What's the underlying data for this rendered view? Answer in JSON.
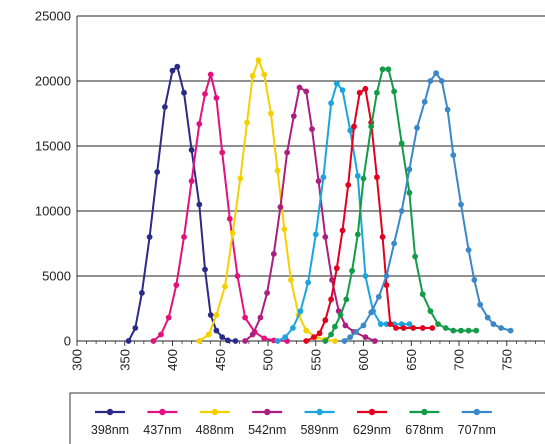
{
  "chart_data": {
    "type": "line",
    "title": "",
    "xlabel": "",
    "ylabel": "",
    "xlim": [
      300,
      790
    ],
    "ylim": [
      0,
      25000
    ],
    "x_ticks": [
      300,
      350,
      400,
      450,
      500,
      550,
      600,
      650,
      700,
      750
    ],
    "x_tick_labels": [
      "300",
      "350",
      "400",
      "450",
      "500",
      "550",
      "600",
      "650",
      "700",
      "750"
    ],
    "y_ticks": [
      0,
      5000,
      10000,
      15000,
      20000,
      25000
    ],
    "y_tick_labels": [
      "0",
      "5000",
      "10000",
      "15000",
      "20000",
      "25000"
    ],
    "grid": "horizontal",
    "legend": "bottom",
    "series": [
      {
        "name": "398nm",
        "color": "#2b2a86",
        "points": [
          [
            354,
            0
          ],
          [
            361,
            1000
          ],
          [
            368,
            3700
          ],
          [
            376,
            8000
          ],
          [
            384,
            13000
          ],
          [
            392,
            18000
          ],
          [
            400,
            20800
          ],
          [
            405,
            21100
          ],
          [
            412,
            19100
          ],
          [
            420,
            14700
          ],
          [
            428,
            10500
          ],
          [
            434,
            5500
          ],
          [
            440,
            2000
          ],
          [
            446,
            800
          ],
          [
            452,
            300
          ],
          [
            458,
            50
          ],
          [
            466,
            0
          ]
        ]
      },
      {
        "name": "437nm",
        "color": "#e3117e",
        "points": [
          [
            380,
            0
          ],
          [
            388,
            500
          ],
          [
            396,
            1800
          ],
          [
            404,
            4300
          ],
          [
            412,
            8000
          ],
          [
            420,
            12300
          ],
          [
            428,
            16700
          ],
          [
            434,
            19000
          ],
          [
            440,
            20500
          ],
          [
            446,
            18700
          ],
          [
            452,
            14500
          ],
          [
            460,
            9400
          ],
          [
            468,
            5000
          ],
          [
            476,
            1800
          ],
          [
            486,
            700
          ],
          [
            496,
            200
          ],
          [
            506,
            50
          ],
          [
            520,
            0
          ]
        ]
      },
      {
        "name": "488nm",
        "color": "#f5d000",
        "points": [
          [
            428,
            0
          ],
          [
            438,
            500
          ],
          [
            446,
            2000
          ],
          [
            455,
            4200
          ],
          [
            463,
            8300
          ],
          [
            471,
            12500
          ],
          [
            478,
            16800
          ],
          [
            484,
            20400
          ],
          [
            490,
            21600
          ],
          [
            496,
            20500
          ],
          [
            503,
            17500
          ],
          [
            510,
            13100
          ],
          [
            517,
            8600
          ],
          [
            524,
            4700
          ],
          [
            532,
            2000
          ],
          [
            540,
            800
          ],
          [
            550,
            300
          ],
          [
            560,
            100
          ],
          [
            570,
            0
          ]
        ]
      },
      {
        "name": "542nm",
        "color": "#ad1f7f",
        "points": [
          [
            476,
            0
          ],
          [
            484,
            500
          ],
          [
            492,
            1800
          ],
          [
            499,
            3700
          ],
          [
            506,
            6700
          ],
          [
            513,
            10300
          ],
          [
            520,
            14500
          ],
          [
            527,
            17300
          ],
          [
            533,
            19500
          ],
          [
            540,
            19200
          ],
          [
            546,
            16300
          ],
          [
            553,
            12300
          ],
          [
            560,
            8000
          ],
          [
            567,
            4700
          ],
          [
            574,
            2300
          ],
          [
            581,
            1200
          ],
          [
            590,
            700
          ],
          [
            602,
            300
          ],
          [
            612,
            0
          ]
        ]
      },
      {
        "name": "589nm",
        "color": "#1aa6dc",
        "points": [
          [
            510,
            0
          ],
          [
            518,
            300
          ],
          [
            526,
            1000
          ],
          [
            534,
            2300
          ],
          [
            542,
            4500
          ],
          [
            550,
            8200
          ],
          [
            558,
            12600
          ],
          [
            566,
            18300
          ],
          [
            572,
            19800
          ],
          [
            578,
            19300
          ],
          [
            586,
            16200
          ],
          [
            594,
            12700
          ],
          [
            602,
            5000
          ],
          [
            610,
            2300
          ],
          [
            618,
            1300
          ],
          [
            624,
            1300
          ],
          [
            632,
            1300
          ],
          [
            640,
            1300
          ],
          [
            648,
            1300
          ]
        ]
      },
      {
        "name": "629nm",
        "color": "#e3001f",
        "points": [
          [
            540,
            0
          ],
          [
            548,
            300
          ],
          [
            554,
            600
          ],
          [
            560,
            1600
          ],
          [
            566,
            3200
          ],
          [
            572,
            5600
          ],
          [
            578,
            8500
          ],
          [
            584,
            12000
          ],
          [
            590,
            16500
          ],
          [
            596,
            19100
          ],
          [
            602,
            19400
          ],
          [
            608,
            16800
          ],
          [
            614,
            12600
          ],
          [
            620,
            8000
          ],
          [
            624,
            4300
          ],
          [
            628,
            1300
          ],
          [
            634,
            1000
          ],
          [
            642,
            1000
          ],
          [
            652,
            1000
          ],
          [
            662,
            1000
          ],
          [
            672,
            1000
          ]
        ]
      },
      {
        "name": "678nm",
        "color": "#129c47",
        "points": [
          [
            560,
            0
          ],
          [
            566,
            500
          ],
          [
            570,
            1100
          ],
          [
            576,
            2000
          ],
          [
            582,
            3200
          ],
          [
            588,
            5400
          ],
          [
            594,
            8200
          ],
          [
            600,
            12500
          ],
          [
            608,
            16500
          ],
          [
            614,
            19100
          ],
          [
            620,
            20900
          ],
          [
            626,
            20900
          ],
          [
            632,
            19200
          ],
          [
            640,
            15200
          ],
          [
            648,
            11400
          ],
          [
            654,
            6500
          ],
          [
            662,
            3600
          ],
          [
            670,
            2300
          ],
          [
            678,
            1300
          ],
          [
            686,
            1000
          ],
          [
            694,
            800
          ],
          [
            702,
            800
          ],
          [
            710,
            800
          ],
          [
            718,
            800
          ]
        ]
      },
      {
        "name": "707nm",
        "color": "#3a88c8",
        "points": [
          [
            580,
            0
          ],
          [
            586,
            300
          ],
          [
            592,
            700
          ],
          [
            600,
            1200
          ],
          [
            608,
            2200
          ],
          [
            616,
            3400
          ],
          [
            624,
            5000
          ],
          [
            632,
            7500
          ],
          [
            640,
            10000
          ],
          [
            648,
            13200
          ],
          [
            656,
            16400
          ],
          [
            664,
            18400
          ],
          [
            670,
            20000
          ],
          [
            676,
            20600
          ],
          [
            682,
            20000
          ],
          [
            688,
            17800
          ],
          [
            694,
            14300
          ],
          [
            702,
            10500
          ],
          [
            710,
            7000
          ],
          [
            716,
            4700
          ],
          [
            722,
            2800
          ],
          [
            730,
            1800
          ],
          [
            736,
            1300
          ],
          [
            744,
            1000
          ],
          [
            754,
            800
          ]
        ]
      }
    ]
  }
}
